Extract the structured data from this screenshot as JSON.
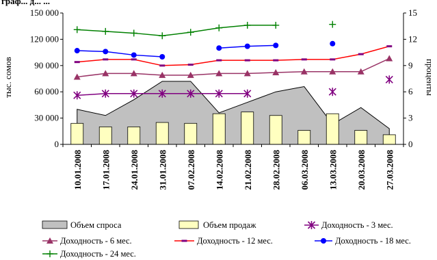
{
  "chart_data": {
    "type": "bar",
    "title_fragment": "граф... д... ...",
    "categories": [
      "10.01.2008",
      "17.01.2008",
      "24.01.2008",
      "31.01.2008",
      "07.02.2008",
      "14.02.2008",
      "21.02.2008",
      "28.02.2008",
      "06.03.2008",
      "13.03.2008",
      "20.03.2008",
      "27.03.2008"
    ],
    "ylabel_left": "тыс. сомов",
    "ylabel_right": "проценты",
    "ylim_left": [
      0,
      150000
    ],
    "ylim_right": [
      0,
      15
    ],
    "yticks_left": [
      "0",
      "30 000",
      "60 000",
      "90 000",
      "120 000",
      "150 000"
    ],
    "yticks_right": [
      "0",
      "3",
      "6",
      "9",
      "12",
      "15"
    ],
    "grid": false,
    "legend_position": "bottom",
    "series": [
      {
        "name": "Объем спроса",
        "type": "area",
        "axis": "left",
        "color": "#c0c0c0",
        "values": [
          40000,
          33000,
          51000,
          72000,
          72000,
          36000,
          48000,
          60000,
          66000,
          23000,
          42000,
          18000
        ]
      },
      {
        "name": "Объем продаж",
        "type": "bar",
        "axis": "left",
        "color": "#ffffc0",
        "values": [
          24000,
          20000,
          20000,
          25000,
          24000,
          35000,
          37000,
          33000,
          16000,
          35000,
          16000,
          11000
        ]
      },
      {
        "name": "Доходность - 3 мес.",
        "type": "line",
        "axis": "right",
        "marker": "asterisk",
        "color": "#800080",
        "values": [
          5.6,
          5.8,
          5.8,
          5.8,
          5.8,
          5.8,
          5.8,
          null,
          null,
          6.0,
          null,
          7.4
        ]
      },
      {
        "name": "Доходность - 6 мес.",
        "type": "line",
        "axis": "right",
        "marker": "triangle",
        "color": "#993366",
        "values": [
          7.7,
          8.1,
          8.1,
          7.9,
          7.9,
          8.1,
          8.1,
          8.2,
          8.3,
          8.3,
          8.3,
          9.8
        ]
      },
      {
        "name": "Доходность - 12 мес.",
        "type": "line",
        "axis": "right",
        "marker": "dash",
        "color": "#ff0000",
        "values": [
          9.4,
          9.7,
          9.7,
          9.0,
          9.1,
          9.6,
          9.6,
          9.6,
          9.7,
          9.7,
          10.3,
          11.2
        ]
      },
      {
        "name": "Доходность - 18 мес.",
        "type": "line",
        "axis": "right",
        "marker": "circle",
        "color": "#0000ff",
        "values": [
          10.7,
          10.6,
          10.2,
          10.0,
          null,
          11.0,
          11.2,
          11.3,
          null,
          11.5,
          null,
          null
        ]
      },
      {
        "name": "Доходность - 24 мес.",
        "type": "line",
        "axis": "right",
        "marker": "plus",
        "color": "#008000",
        "values": [
          13.1,
          12.9,
          12.7,
          12.4,
          12.8,
          13.3,
          13.6,
          13.6,
          null,
          13.7,
          null,
          null
        ]
      }
    ]
  }
}
